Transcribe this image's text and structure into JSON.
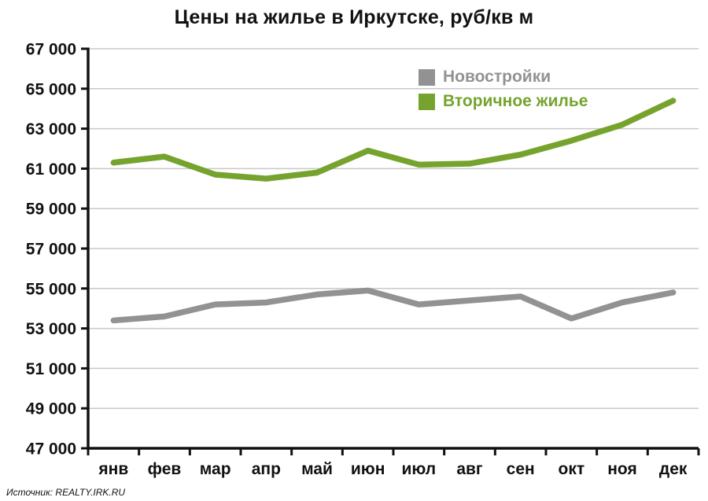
{
  "title": "Цены на жилье в Иркутске, руб/кв м",
  "source": "Источник: REALTY.IRK.RU",
  "chart_data": {
    "type": "line",
    "title": "Цены на жилье в Иркутске, руб/кв м",
    "xlabel": "",
    "ylabel": "руб/кв м",
    "categories": [
      "янв",
      "фев",
      "мар",
      "апр",
      "май",
      "июн",
      "июл",
      "авг",
      "сен",
      "окт",
      "ноя",
      "дек"
    ],
    "series": [
      {
        "name": "Новостройки",
        "color": "#929292",
        "values": [
          53400,
          53600,
          54200,
          54300,
          54700,
          54900,
          54200,
          54400,
          54600,
          53500,
          54300,
          54800
        ]
      },
      {
        "name": "Вторичное жилье",
        "color": "#76a32e",
        "values": [
          61300,
          61600,
          60700,
          60500,
          60800,
          61900,
          61200,
          61250,
          61700,
          62400,
          63200,
          64400
        ]
      }
    ],
    "ylim": [
      47000,
      67000
    ],
    "ytick_step": 2000,
    "ytick_labels": [
      "47 000",
      "49 000",
      "51 000",
      "53 000",
      "55 000",
      "57 000",
      "59 000",
      "61 000",
      "63 000",
      "65 000",
      "67 000"
    ],
    "grid": true,
    "grid_color": "#c9c9c9",
    "axis_color": "#111111",
    "legend_position": "inside-top-center"
  }
}
